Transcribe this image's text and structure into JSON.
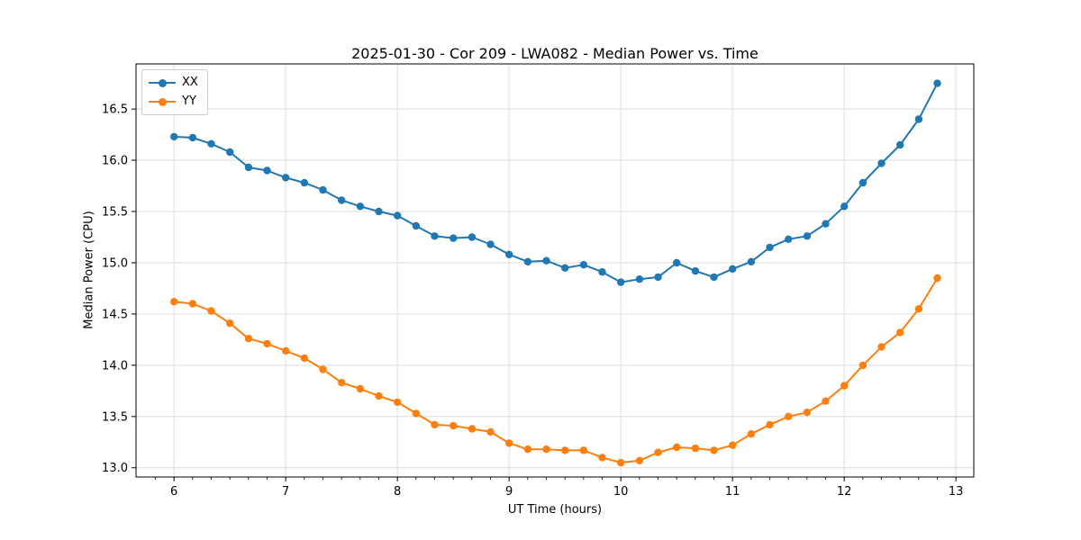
{
  "figure": {
    "background": "#ffffff",
    "text_color": "#000000",
    "spine_color": "#000000"
  },
  "chart_data": {
    "type": "line",
    "title": "2025-01-30 - Cor 209 - LWA082 - Median Power vs. Time",
    "xlabel": "UT Time (hours)",
    "ylabel": "Median Power (CPU)",
    "xlim": [
      5.66,
      13.16
    ],
    "ylim": [
      12.91,
      16.94
    ],
    "x_ticks": [
      6,
      7,
      8,
      9,
      10,
      11,
      12,
      13
    ],
    "x_minor_tick_step": 0.16667,
    "y_ticks": [
      13.0,
      13.5,
      14.0,
      14.5,
      15.0,
      15.5,
      16.0,
      16.5
    ],
    "y_tick_decimals": 1,
    "grid": true,
    "grid_color": "#dcdcdc",
    "legend_position": "upper-left",
    "x": [
      6.0,
      6.167,
      6.333,
      6.5,
      6.667,
      6.833,
      7.0,
      7.167,
      7.333,
      7.5,
      7.667,
      7.833,
      8.0,
      8.167,
      8.333,
      8.5,
      8.667,
      8.833,
      9.0,
      9.167,
      9.333,
      9.5,
      9.667,
      9.833,
      10.0,
      10.167,
      10.333,
      10.5,
      10.667,
      10.833,
      11.0,
      11.167,
      11.333,
      11.5,
      11.667,
      11.833,
      12.0,
      12.167,
      12.333,
      12.5,
      12.667,
      12.833
    ],
    "series": [
      {
        "name": "XX",
        "color": "#1f77b4",
        "values": [
          16.23,
          16.22,
          16.16,
          16.08,
          15.93,
          15.9,
          15.83,
          15.78,
          15.71,
          15.61,
          15.55,
          15.5,
          15.46,
          15.36,
          15.26,
          15.24,
          15.25,
          15.18,
          15.08,
          15.01,
          15.02,
          14.95,
          14.98,
          14.91,
          14.81,
          14.84,
          14.86,
          15.0,
          14.92,
          14.86,
          14.94,
          15.01,
          15.15,
          15.23,
          15.26,
          15.38,
          15.55,
          15.78,
          15.97,
          16.15,
          16.4,
          16.75
        ]
      },
      {
        "name": "YY",
        "color": "#ff7f0e",
        "values": [
          14.62,
          14.6,
          14.53,
          14.41,
          14.26,
          14.21,
          14.14,
          14.07,
          13.96,
          13.83,
          13.77,
          13.7,
          13.64,
          13.53,
          13.42,
          13.41,
          13.38,
          13.35,
          13.24,
          13.18,
          13.18,
          13.17,
          13.17,
          13.1,
          13.05,
          13.07,
          13.15,
          13.2,
          13.19,
          13.17,
          13.22,
          13.33,
          13.42,
          13.5,
          13.54,
          13.65,
          13.8,
          14.0,
          14.18,
          14.32,
          14.55,
          14.85
        ]
      }
    ]
  }
}
